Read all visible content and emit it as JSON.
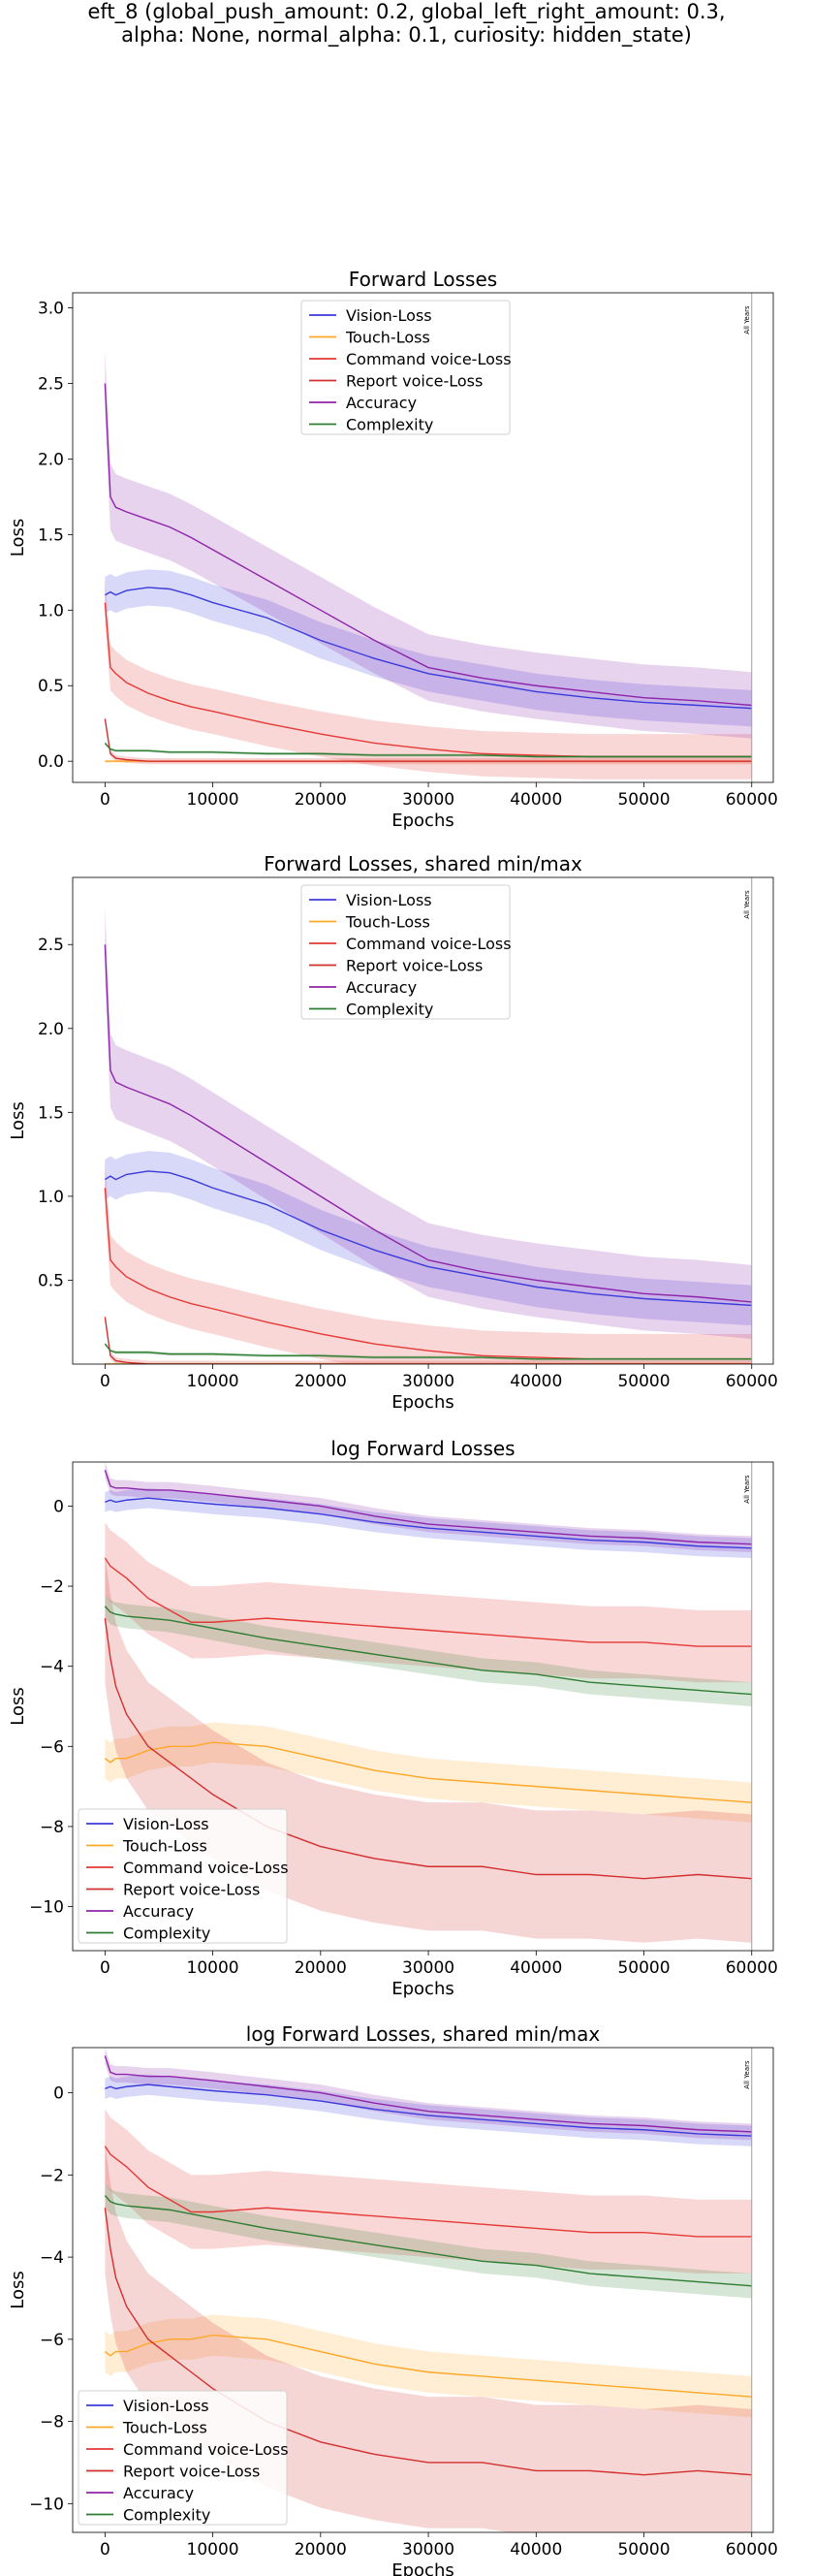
{
  "suptitle": {
    "line1": "eft_8 (global_push_amount: 0.2, global_left_right_amount: 0.3,",
    "line2": "alpha: None, normal_alpha: 0.1, curiosity: hidden_state)"
  },
  "colors": {
    "vision": "#3b3bdc",
    "touch": "#ffa726",
    "command": "#e53935",
    "report": "#d32f2f",
    "accuracy": "#8e24aa",
    "complexity": "#2e7d32"
  },
  "vline_label": "All Years",
  "chart_data": [
    {
      "type": "line",
      "title": "Forward Losses",
      "xlabel": "Epochs",
      "ylabel": "Loss",
      "xlim": [
        -3000,
        62000
      ],
      "ylim": [
        -0.14,
        3.1
      ],
      "xticks": [
        0,
        10000,
        20000,
        30000,
        40000,
        50000,
        60000
      ],
      "yticks": [
        0.0,
        0.5,
        1.0,
        1.5,
        2.0,
        2.5,
        3.0
      ],
      "ytick_labels": [
        "0.0",
        "0.5",
        "1.0",
        "1.5",
        "2.0",
        "2.5",
        "3.0"
      ],
      "legend_loc": "upper center",
      "vline_x": 60000,
      "x": [
        0,
        500,
        1000,
        2000,
        4000,
        6000,
        8000,
        10000,
        15000,
        20000,
        25000,
        30000,
        35000,
        40000,
        45000,
        50000,
        55000,
        60000
      ],
      "series": [
        {
          "name": "Vision-Loss",
          "key": "vision",
          "values": [
            1.1,
            1.12,
            1.1,
            1.13,
            1.15,
            1.14,
            1.1,
            1.05,
            0.95,
            0.8,
            0.68,
            0.58,
            0.52,
            0.46,
            0.42,
            0.39,
            0.37,
            0.35
          ],
          "band": 0.12
        },
        {
          "name": "Touch-Loss",
          "key": "touch",
          "values": [
            0.0,
            0.0,
            0.0,
            0.0,
            0.0,
            0.0,
            0.0,
            0.0,
            0.0,
            0.0,
            0.0,
            0.0,
            0.0,
            0.0,
            0.0,
            0.0,
            0.0,
            0.0
          ],
          "band": 0.01
        },
        {
          "name": "Command voice-Loss",
          "key": "command",
          "values": [
            1.05,
            0.62,
            0.58,
            0.52,
            0.45,
            0.4,
            0.36,
            0.33,
            0.25,
            0.18,
            0.12,
            0.08,
            0.05,
            0.04,
            0.03,
            0.03,
            0.03,
            0.03
          ],
          "band": 0.15
        },
        {
          "name": "Report voice-Loss",
          "key": "report",
          "values": [
            0.28,
            0.05,
            0.02,
            0.01,
            0.0,
            0.0,
            0.0,
            0.0,
            0.0,
            0.0,
            0.0,
            0.0,
            0.0,
            0.0,
            0.0,
            0.0,
            0.0,
            0.0
          ],
          "band": 0.02
        },
        {
          "name": "Accuracy",
          "key": "accuracy",
          "values": [
            2.5,
            1.75,
            1.68,
            1.65,
            1.6,
            1.55,
            1.48,
            1.4,
            1.2,
            1.0,
            0.8,
            0.62,
            0.55,
            0.5,
            0.46,
            0.42,
            0.4,
            0.37
          ],
          "band": 0.22
        },
        {
          "name": "Complexity",
          "key": "complexity",
          "values": [
            0.12,
            0.08,
            0.07,
            0.07,
            0.07,
            0.06,
            0.06,
            0.06,
            0.05,
            0.05,
            0.04,
            0.04,
            0.04,
            0.03,
            0.03,
            0.03,
            0.03,
            0.03
          ],
          "band": 0.01
        }
      ]
    },
    {
      "type": "line",
      "title": "Forward Losses, shared min/max",
      "xlabel": "Epochs",
      "ylabel": "Loss",
      "xlim": [
        -3000,
        62000
      ],
      "ylim": [
        0.0,
        2.9
      ],
      "xticks": [
        0,
        10000,
        20000,
        30000,
        40000,
        50000,
        60000
      ],
      "yticks": [
        0.5,
        1.0,
        1.5,
        2.0,
        2.5
      ],
      "ytick_labels": [
        "0.5",
        "1.0",
        "1.5",
        "2.0",
        "2.5"
      ],
      "legend_loc": "upper center",
      "vline_x": 60000,
      "x": [
        0,
        500,
        1000,
        2000,
        4000,
        6000,
        8000,
        10000,
        15000,
        20000,
        25000,
        30000,
        35000,
        40000,
        45000,
        50000,
        55000,
        60000
      ],
      "series": [
        {
          "name": "Vision-Loss",
          "key": "vision",
          "values": [
            1.1,
            1.12,
            1.1,
            1.13,
            1.15,
            1.14,
            1.1,
            1.05,
            0.95,
            0.8,
            0.68,
            0.58,
            0.52,
            0.46,
            0.42,
            0.39,
            0.37,
            0.35
          ],
          "band": 0.12
        },
        {
          "name": "Touch-Loss",
          "key": "touch",
          "values": [
            0.0,
            0.0,
            0.0,
            0.0,
            0.0,
            0.0,
            0.0,
            0.0,
            0.0,
            0.0,
            0.0,
            0.0,
            0.0,
            0.0,
            0.0,
            0.0,
            0.0,
            0.0
          ],
          "band": 0.01
        },
        {
          "name": "Command voice-Loss",
          "key": "command",
          "values": [
            1.05,
            0.62,
            0.58,
            0.52,
            0.45,
            0.4,
            0.36,
            0.33,
            0.25,
            0.18,
            0.12,
            0.08,
            0.05,
            0.04,
            0.03,
            0.03,
            0.03,
            0.03
          ],
          "band": 0.15
        },
        {
          "name": "Report voice-Loss",
          "key": "report",
          "values": [
            0.28,
            0.05,
            0.02,
            0.01,
            0.0,
            0.0,
            0.0,
            0.0,
            0.0,
            0.0,
            0.0,
            0.0,
            0.0,
            0.0,
            0.0,
            0.0,
            0.0,
            0.0
          ],
          "band": 0.02
        },
        {
          "name": "Accuracy",
          "key": "accuracy",
          "values": [
            2.5,
            1.75,
            1.68,
            1.65,
            1.6,
            1.55,
            1.48,
            1.4,
            1.2,
            1.0,
            0.8,
            0.62,
            0.55,
            0.5,
            0.46,
            0.42,
            0.4,
            0.37
          ],
          "band": 0.22
        },
        {
          "name": "Complexity",
          "key": "complexity",
          "values": [
            0.12,
            0.08,
            0.07,
            0.07,
            0.07,
            0.06,
            0.06,
            0.06,
            0.05,
            0.05,
            0.04,
            0.04,
            0.04,
            0.03,
            0.03,
            0.03,
            0.03,
            0.03
          ],
          "band": 0.01
        }
      ]
    },
    {
      "type": "line",
      "title": "log Forward Losses",
      "xlabel": "Epochs",
      "ylabel": "Loss",
      "xlim": [
        -3000,
        62000
      ],
      "ylim": [
        -11.1,
        1.1
      ],
      "xticks": [
        0,
        10000,
        20000,
        30000,
        40000,
        50000,
        60000
      ],
      "yticks": [
        0,
        -2,
        -4,
        -6,
        -8,
        -10
      ],
      "ytick_labels": [
        "0",
        "−2",
        "−4",
        "−6",
        "−8",
        "−10"
      ],
      "legend_loc": "lower left",
      "vline_x": 60000,
      "x": [
        0,
        500,
        1000,
        2000,
        4000,
        6000,
        8000,
        10000,
        15000,
        20000,
        25000,
        30000,
        35000,
        40000,
        45000,
        50000,
        55000,
        60000
      ],
      "series": [
        {
          "name": "Vision-Loss",
          "key": "vision",
          "values": [
            0.1,
            0.15,
            0.1,
            0.15,
            0.2,
            0.15,
            0.1,
            0.05,
            -0.05,
            -0.2,
            -0.4,
            -0.55,
            -0.65,
            -0.75,
            -0.85,
            -0.9,
            -1.0,
            -1.05
          ],
          "band": 0.25
        },
        {
          "name": "Touch-Loss",
          "key": "touch",
          "values": [
            -6.3,
            -6.4,
            -6.3,
            -6.3,
            -6.1,
            -6.0,
            -6.0,
            -5.9,
            -6.0,
            -6.3,
            -6.6,
            -6.8,
            -6.9,
            -7.0,
            -7.1,
            -7.2,
            -7.3,
            -7.4
          ],
          "band": 0.5
        },
        {
          "name": "Command voice-Loss",
          "key": "command",
          "values": [
            -1.3,
            -1.5,
            -1.6,
            -1.8,
            -2.3,
            -2.6,
            -2.9,
            -2.9,
            -2.8,
            -2.9,
            -3.0,
            -3.1,
            -3.2,
            -3.3,
            -3.4,
            -3.4,
            -3.5,
            -3.5
          ],
          "band": 0.9
        },
        {
          "name": "Report voice-Loss",
          "key": "report",
          "values": [
            -2.8,
            -3.8,
            -4.5,
            -5.2,
            -6.0,
            -6.4,
            -6.8,
            -7.2,
            -8.0,
            -8.5,
            -8.8,
            -9.0,
            -9.0,
            -9.2,
            -9.2,
            -9.3,
            -9.2,
            -9.3
          ],
          "band": 1.6
        },
        {
          "name": "Accuracy",
          "key": "accuracy",
          "values": [
            0.9,
            0.5,
            0.45,
            0.45,
            0.4,
            0.4,
            0.35,
            0.3,
            0.15,
            0.0,
            -0.25,
            -0.45,
            -0.55,
            -0.65,
            -0.75,
            -0.8,
            -0.9,
            -0.95
          ],
          "band": 0.2
        },
        {
          "name": "Complexity",
          "key": "complexity",
          "values": [
            -2.5,
            -2.65,
            -2.7,
            -2.75,
            -2.8,
            -2.85,
            -2.95,
            -3.05,
            -3.3,
            -3.5,
            -3.7,
            -3.9,
            -4.1,
            -4.2,
            -4.4,
            -4.5,
            -4.6,
            -4.7
          ],
          "band": 0.3
        }
      ]
    },
    {
      "type": "line",
      "title": "log Forward Losses, shared min/max",
      "xlabel": "Epochs",
      "ylabel": "Loss",
      "xlim": [
        -3000,
        62000
      ],
      "ylim": [
        -10.7,
        1.1
      ],
      "xticks": [
        0,
        10000,
        20000,
        30000,
        40000,
        50000,
        60000
      ],
      "yticks": [
        0,
        -2,
        -4,
        -6,
        -8,
        -10
      ],
      "ytick_labels": [
        "0",
        "−2",
        "−4",
        "−6",
        "−8",
        "−10"
      ],
      "legend_loc": "lower left",
      "vline_x": 60000,
      "x": [
        0,
        500,
        1000,
        2000,
        4000,
        6000,
        8000,
        10000,
        15000,
        20000,
        25000,
        30000,
        35000,
        40000,
        45000,
        50000,
        55000,
        60000
      ],
      "series": [
        {
          "name": "Vision-Loss",
          "key": "vision",
          "values": [
            0.1,
            0.15,
            0.1,
            0.15,
            0.2,
            0.15,
            0.1,
            0.05,
            -0.05,
            -0.2,
            -0.4,
            -0.55,
            -0.65,
            -0.75,
            -0.85,
            -0.9,
            -1.0,
            -1.05
          ],
          "band": 0.25
        },
        {
          "name": "Touch-Loss",
          "key": "touch",
          "values": [
            -6.3,
            -6.4,
            -6.3,
            -6.3,
            -6.1,
            -6.0,
            -6.0,
            -5.9,
            -6.0,
            -6.3,
            -6.6,
            -6.8,
            -6.9,
            -7.0,
            -7.1,
            -7.2,
            -7.3,
            -7.4
          ],
          "band": 0.5
        },
        {
          "name": "Command voice-Loss",
          "key": "command",
          "values": [
            -1.3,
            -1.5,
            -1.6,
            -1.8,
            -2.3,
            -2.6,
            -2.9,
            -2.9,
            -2.8,
            -2.9,
            -3.0,
            -3.1,
            -3.2,
            -3.3,
            -3.4,
            -3.4,
            -3.5,
            -3.5
          ],
          "band": 0.9
        },
        {
          "name": "Report voice-Loss",
          "key": "report",
          "values": [
            -2.8,
            -3.8,
            -4.5,
            -5.2,
            -6.0,
            -6.4,
            -6.8,
            -7.2,
            -8.0,
            -8.5,
            -8.8,
            -9.0,
            -9.0,
            -9.2,
            -9.2,
            -9.3,
            -9.2,
            -9.3
          ],
          "band": 1.6
        },
        {
          "name": "Accuracy",
          "key": "accuracy",
          "values": [
            0.9,
            0.5,
            0.45,
            0.45,
            0.4,
            0.4,
            0.35,
            0.3,
            0.15,
            0.0,
            -0.25,
            -0.45,
            -0.55,
            -0.65,
            -0.75,
            -0.8,
            -0.9,
            -0.95
          ],
          "band": 0.2
        },
        {
          "name": "Complexity",
          "key": "complexity",
          "values": [
            -2.5,
            -2.65,
            -2.7,
            -2.75,
            -2.8,
            -2.85,
            -2.95,
            -3.05,
            -3.3,
            -3.5,
            -3.7,
            -3.9,
            -4.1,
            -4.2,
            -4.4,
            -4.5,
            -4.6,
            -4.7
          ],
          "band": 0.3
        }
      ]
    }
  ]
}
